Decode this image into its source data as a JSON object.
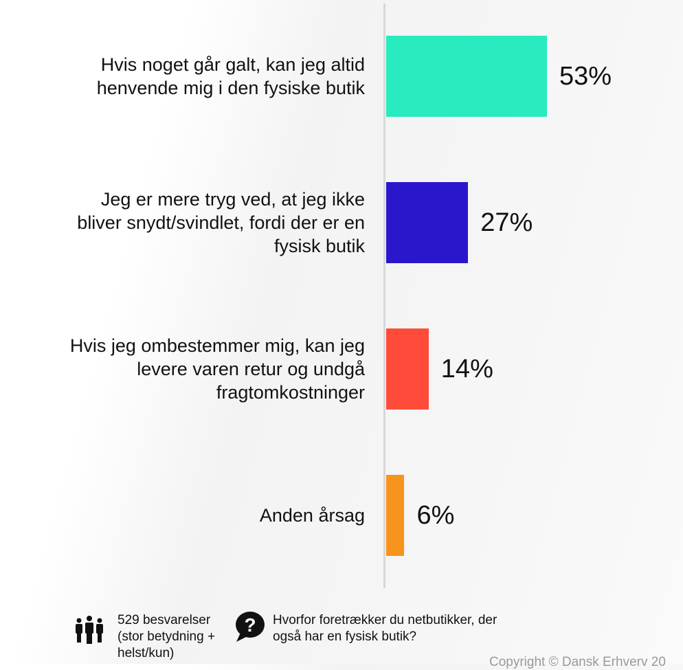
{
  "chart_data": {
    "type": "bar",
    "orientation": "horizontal",
    "categories": [
      "Hvis noget går galt, kan jeg altid henvende mig i den fysiske butik",
      "Jeg er mere tryg ved, at jeg ikke bliver snydt/svindlet, fordi der er en fysisk butik",
      "Hvis jeg ombestemmer mig, kan jeg levere varen retur og undgå fragtomkostninger",
      "Anden årsag"
    ],
    "values": [
      53,
      27,
      14,
      6
    ],
    "value_labels": [
      "53%",
      "27%",
      "14%",
      "6%"
    ],
    "colors": [
      "#28EBC0",
      "#2A17CC",
      "#FF4B3A",
      "#F7941D"
    ],
    "xlim": [
      0,
      100
    ],
    "grid": false
  },
  "footer": {
    "responses": "529 besvarelser (stor betydning + helst/kun)",
    "question": "Hvorfor foretrækker du netbutikker, der også har en fysisk butik?",
    "copyright": "Copyright © Dansk Erhverv 20"
  }
}
